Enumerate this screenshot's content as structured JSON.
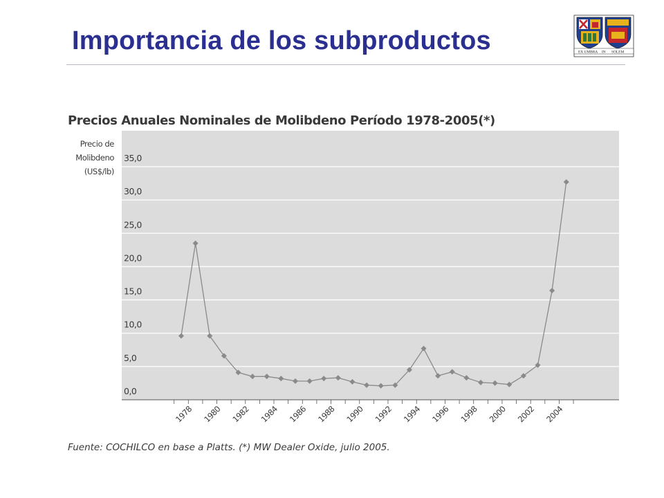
{
  "slide": {
    "title": "Importancia de los subproductos",
    "crest_motto_left": "EX UMBRA",
    "crest_motto_mid": "IN",
    "crest_motto_right": "SOLEM"
  },
  "chart_title": "Precios Anuales Nominales de Molibdeno Período 1978-2005(*)",
  "source_note": "Fuente: COCHILCO en base a Platts. (*) MW Dealer Oxide, julio 2005.",
  "colors": {
    "title": "#2b2f8f",
    "plot_bg": "#dcdcdc",
    "series": "#8a8a8a",
    "gridline": "#ffffff",
    "crest_blue": "#1f3f8f",
    "crest_red": "#c4262e",
    "crest_gold": "#e8b21c"
  },
  "chart_data": {
    "type": "line",
    "title": "Precios Anuales Nominales de Molibdeno Período 1978-2005(*)",
    "ylabel": [
      "Precio de",
      "Molibdeno",
      "(US$/lb)"
    ],
    "ylim": [
      0,
      37.5
    ],
    "yticks": [
      0,
      5,
      10,
      15,
      20,
      25,
      30,
      35
    ],
    "ytick_labels": [
      "0,0",
      "5,0",
      "10,0",
      "15,0",
      "20,0",
      "25,0",
      "30,0",
      "35,0"
    ],
    "xtick_labels": [
      "1978",
      "1980",
      "1982",
      "1984",
      "1986",
      "1988",
      "1990",
      "1992",
      "1994",
      "1996",
      "1998",
      "2000",
      "2002",
      "2004"
    ],
    "grid": true,
    "marker": "diamond",
    "series": [
      {
        "x": [
          1978,
          1979,
          1980,
          1981,
          1982,
          1983,
          1984,
          1985,
          1986,
          1987,
          1988,
          1989,
          1990,
          1991,
          1992,
          1993,
          1994,
          1995,
          1996,
          1997,
          1998,
          1999,
          2000,
          2001,
          2002,
          2003,
          2004,
          2005
        ],
        "values": [
          9.6,
          23.5,
          9.6,
          6.6,
          4.1,
          3.5,
          3.5,
          3.2,
          2.8,
          2.8,
          3.2,
          3.3,
          2.7,
          2.2,
          2.1,
          2.2,
          4.5,
          7.7,
          3.6,
          4.2,
          3.3,
          2.6,
          2.5,
          2.3,
          3.6,
          5.2,
          16.4,
          32.7
        ]
      }
    ]
  }
}
